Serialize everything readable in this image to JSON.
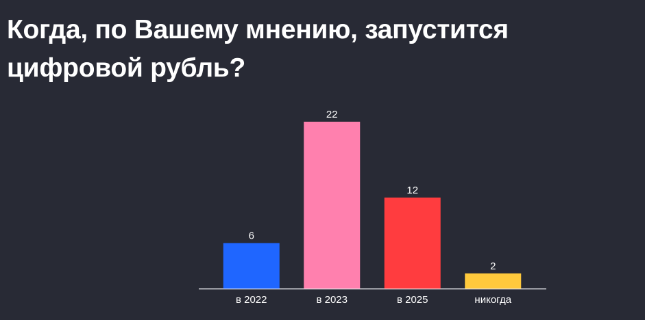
{
  "chart_data": {
    "type": "bar",
    "title": "Когда, по Вашему мнению, запустится цифровой рубль?",
    "categories": [
      "в 2022",
      "в 2023",
      "в 2025",
      "никогда"
    ],
    "values": [
      6,
      22,
      12,
      2
    ],
    "colors": [
      "#1f66ff",
      "#ff80ae",
      "#ff3c3f",
      "#ffc93c"
    ]
  }
}
